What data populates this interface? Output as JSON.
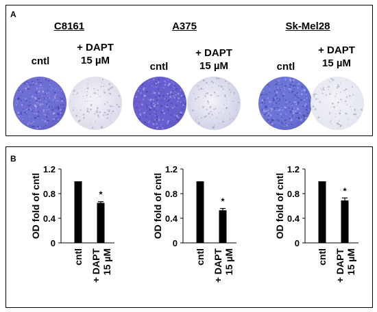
{
  "panel_a": {
    "label": "A",
    "groups": [
      {
        "name": "C8161",
        "control_label": "cntl",
        "treated_label": "+ DAPT\n15 µM",
        "control_color": "#6d6fd4",
        "treated_color": "#dcdceb"
      },
      {
        "name": "A375",
        "control_label": "cntl",
        "treated_label": "+ DAPT\n15 µM",
        "control_color": "#6a5fd0",
        "treated_color": "#cfd0e6"
      },
      {
        "name": "Sk-Mel28",
        "control_label": "cntl",
        "treated_label": "+ DAPT\n15 µM",
        "control_color": "#6c74d8",
        "treated_color": "#e4e6f0"
      }
    ]
  },
  "panel_b": {
    "label": "B"
  },
  "chart_data": [
    {
      "type": "bar",
      "categories": [
        "cntl",
        "+ DAPT 15 µM"
      ],
      "values": [
        1.0,
        0.65
      ],
      "errors": [
        0,
        0.02
      ],
      "significance": [
        "",
        "*"
      ],
      "ylabel": "OD fold of cntl",
      "yticks": [
        "0",
        "0.4",
        "0.8",
        "1.2"
      ],
      "ylim": [
        0,
        1.2
      ],
      "bar_color": "#000000"
    },
    {
      "type": "bar",
      "categories": [
        "cntl",
        "+ DAPT 15 µM"
      ],
      "values": [
        1.0,
        0.53
      ],
      "errors": [
        0,
        0.03
      ],
      "significance": [
        "",
        "*"
      ],
      "ylabel": "OD fold of cntl",
      "yticks": [
        "0",
        "0.4",
        "0.8",
        "1.2"
      ],
      "ylim": [
        0,
        1.2
      ],
      "bar_color": "#000000"
    },
    {
      "type": "bar",
      "categories": [
        "cntl",
        "+ DAPT 15 µM"
      ],
      "values": [
        1.0,
        0.69
      ],
      "errors": [
        0,
        0.04
      ],
      "significance": [
        "",
        "*"
      ],
      "ylabel": "OD fold of cntl",
      "yticks": [
        "0",
        "0.4",
        "0.8",
        "1.2"
      ],
      "ylim": [
        0,
        1.2
      ],
      "bar_color": "#000000"
    }
  ]
}
